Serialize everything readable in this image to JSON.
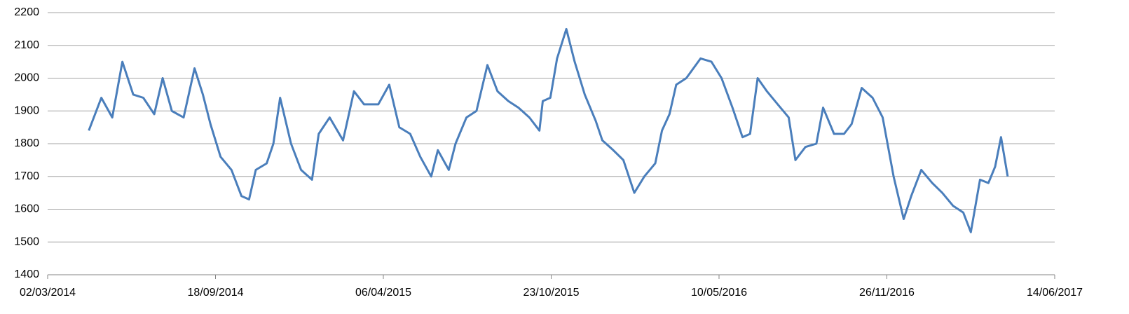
{
  "chart_data": {
    "type": "line",
    "x": [
      "20/04/2014",
      "05/05/2014",
      "18/05/2014",
      "30/05/2014",
      "12/06/2014",
      "24/06/2014",
      "07/07/2014",
      "17/07/2014",
      "28/07/2014",
      "11/08/2014",
      "24/08/2014",
      "03/09/2014",
      "12/09/2014",
      "24/09/2014",
      "07/10/2014",
      "19/10/2014",
      "28/10/2014",
      "05/11/2014",
      "18/11/2014",
      "26/11/2014",
      "04/12/2014",
      "17/12/2014",
      "29/12/2014",
      "11/01/2015",
      "19/01/2015",
      "01/02/2015",
      "17/02/2015",
      "02/03/2015",
      "14/03/2015",
      "31/03/2015",
      "13/04/2015",
      "25/04/2015",
      "08/05/2015",
      "20/05/2015",
      "02/06/2015",
      "10/06/2015",
      "23/06/2015",
      "01/07/2015",
      "14/07/2015",
      "26/07/2015",
      "08/08/2015",
      "20/08/2015",
      "02/09/2015",
      "14/09/2015",
      "27/09/2015",
      "09/10/2015",
      "13/10/2015",
      "22/10/2015",
      "30/10/2015",
      "10/11/2015",
      "20/11/2015",
      "02/12/2015",
      "15/12/2015",
      "23/12/2015",
      "05/01/2016",
      "17/01/2016",
      "30/01/2016",
      "11/02/2016",
      "24/02/2016",
      "03/03/2016",
      "12/03/2016",
      "20/03/2016",
      "01/04/2016",
      "18/04/2016",
      "01/05/2016",
      "13/05/2016",
      "26/05/2016",
      "07/06/2016",
      "16/06/2016",
      "25/06/2016",
      "06/07/2016",
      "19/07/2016",
      "01/08/2016",
      "09/08/2016",
      "21/08/2016",
      "03/09/2016",
      "11/09/2016",
      "24/09/2016",
      "06/10/2016",
      "15/10/2016",
      "27/10/2016",
      "09/11/2016",
      "21/11/2016",
      "04/12/2016",
      "16/12/2016",
      "25/12/2016",
      "06/01/2017",
      "19/01/2017",
      "31/01/2017",
      "13/02/2017",
      "25/02/2017",
      "06/03/2017",
      "17/03/2017",
      "27/03/2017",
      "04/04/2017",
      "11/04/2017",
      "19/04/2017"
    ],
    "series": [
      {
        "color": "#4a7ebb",
        "values": [
          1840,
          1940,
          1880,
          2050,
          1950,
          1940,
          1890,
          2000,
          1900,
          1880,
          2030,
          1950,
          1860,
          1760,
          1720,
          1640,
          1630,
          1720,
          1740,
          1800,
          1940,
          1800,
          1720,
          1690,
          1830,
          1880,
          1810,
          1960,
          1920,
          1920,
          1980,
          1850,
          1830,
          1760,
          1700,
          1780,
          1720,
          1800,
          1880,
          1900,
          2040,
          1960,
          1930,
          1910,
          1880,
          1840,
          1930,
          1940,
          2060,
          2150,
          2050,
          1950,
          1870,
          1810,
          1780,
          1750,
          1650,
          1700,
          1740,
          1840,
          1890,
          1980,
          2000,
          2060,
          2050,
          2000,
          1910,
          1820,
          1830,
          2000,
          1960,
          1920,
          1880,
          1750,
          1790,
          1800,
          1910,
          1830,
          1830,
          1860,
          1970,
          1940,
          1880,
          1700,
          1570,
          1640,
          1720,
          1680,
          1650,
          1610,
          1590,
          1530,
          1690,
          1680,
          1730,
          1820,
          1700
        ]
      }
    ],
    "xlim": [
      "02/03/2014",
      "14/06/2017"
    ],
    "xticks": [
      "02/03/2014",
      "18/09/2014",
      "06/04/2015",
      "23/10/2015",
      "10/05/2016",
      "26/11/2016",
      "14/06/2017"
    ],
    "ylim": [
      1400,
      2200
    ],
    "yticks": [
      1400,
      1500,
      1600,
      1700,
      1800,
      1900,
      2000,
      2100,
      2200
    ],
    "grid": true
  }
}
